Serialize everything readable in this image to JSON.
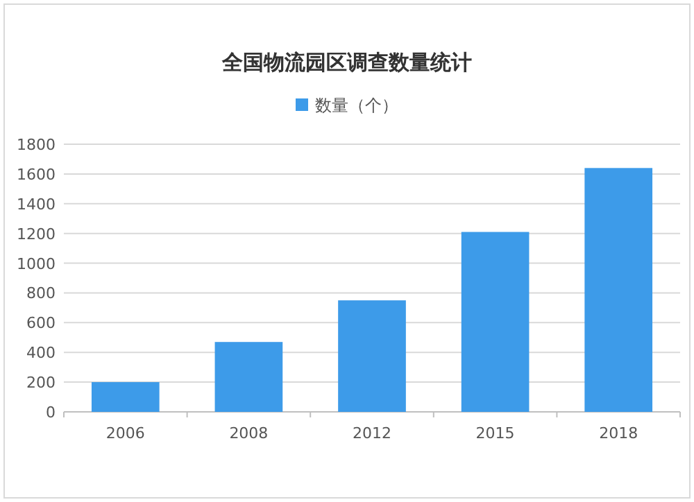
{
  "chart_data": {
    "type": "bar",
    "title": "全国物流园区调查数量统计",
    "categories": [
      "2006",
      "2008",
      "2012",
      "2015",
      "2018"
    ],
    "series": [
      {
        "name": "数量（个）",
        "color": "#3d9be9",
        "values": [
          200,
          470,
          750,
          1210,
          1640
        ]
      }
    ],
    "ylim": [
      0,
      1800
    ],
    "yticks": [
      0,
      200,
      400,
      600,
      800,
      1000,
      1200,
      1400,
      1600,
      1800
    ],
    "grid": "y",
    "legend": "top"
  }
}
